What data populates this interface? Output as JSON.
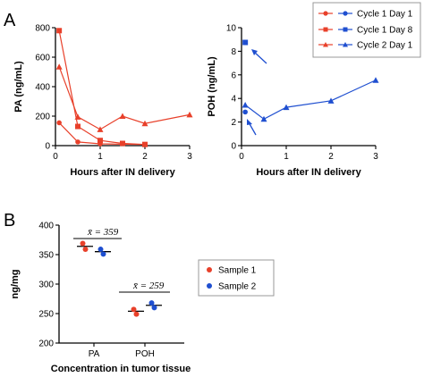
{
  "panels": {
    "a": "A",
    "b": "B"
  },
  "colors": {
    "red": "#e8402a",
    "blue": "#1f4fd0",
    "legend_border": "#999999"
  },
  "chart_data": [
    {
      "id": "pa",
      "type": "line",
      "ylabel": "PA (ng/mL)",
      "xlabel": "Hours after IN delivery",
      "xlim": [
        0,
        3
      ],
      "ylim": [
        0,
        800
      ],
      "xticks": [
        "0",
        "1",
        "2",
        "3"
      ],
      "yticks": [
        "0",
        "200",
        "400",
        "600",
        "800"
      ],
      "series": [
        {
          "name": "Cycle 1 Day 1",
          "marker": "circle",
          "color": "#e8402a",
          "x": [
            0.083,
            0.5,
            1,
            2
          ],
          "y": [
            155,
            25,
            12,
            8
          ]
        },
        {
          "name": "Cycle 1 Day 8",
          "marker": "square",
          "color": "#e8402a",
          "x": [
            0.083,
            0.5,
            1,
            1.5,
            2
          ],
          "y": [
            780,
            130,
            35,
            15,
            8
          ]
        },
        {
          "name": "Cycle 2 Day 1",
          "marker": "triangle",
          "color": "#e8402a",
          "x": [
            0.083,
            0.5,
            1,
            1.5,
            2,
            3
          ],
          "y": [
            535,
            195,
            110,
            200,
            150,
            210
          ]
        }
      ]
    },
    {
      "id": "poh",
      "type": "line",
      "ylabel": "POH (ng/mL)",
      "xlabel": "Hours after IN delivery",
      "xlim": [
        0,
        3
      ],
      "ylim": [
        0,
        10
      ],
      "xticks": [
        "0",
        "1",
        "2",
        "3"
      ],
      "yticks": [
        "0",
        "2",
        "4",
        "6",
        "8",
        "10"
      ],
      "series": [
        {
          "name": "Cycle 1 Day 1",
          "marker": "circle",
          "color": "#1f4fd0",
          "x": [
            0.083
          ],
          "y": [
            2.85
          ]
        },
        {
          "name": "Cycle 1 Day 8",
          "marker": "square",
          "color": "#1f4fd0",
          "x": [
            0.083
          ],
          "y": [
            8.75
          ]
        },
        {
          "name": "Cycle 2 Day 1",
          "marker": "triangle",
          "color": "#1f4fd0",
          "x": [
            0.083,
            0.5,
            1,
            2,
            3
          ],
          "y": [
            3.45,
            2.25,
            3.25,
            3.8,
            5.55
          ]
        }
      ]
    },
    {
      "id": "tissue",
      "type": "scatter",
      "ylabel": "ng/mg",
      "xlabel": "Concentration in tumor tissue",
      "categories": [
        "PA",
        "POH"
      ],
      "ylim": [
        200,
        400
      ],
      "yticks": [
        "200",
        "250",
        "300",
        "350",
        "400"
      ],
      "series": [
        {
          "name": "Sample 1",
          "color": "#e8402a",
          "values": [
            [
              369,
              359
            ],
            [
              257,
              249
            ]
          ],
          "mean": [
            364,
            254
          ]
        },
        {
          "name": "Sample 2",
          "color": "#1f4fd0",
          "values": [
            [
              359,
              351
            ],
            [
              268,
              260
            ]
          ],
          "mean": [
            355,
            264
          ]
        }
      ],
      "annotations": [
        "x̄ = 359",
        "x̄ = 259"
      ]
    }
  ]
}
